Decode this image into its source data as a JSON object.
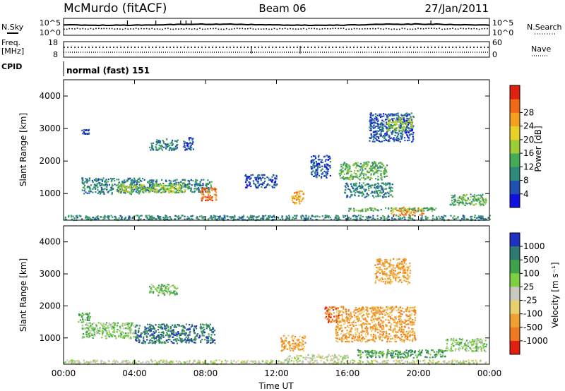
{
  "header": {
    "station": "McMurdo (fitACF)",
    "beam": "Beam 06",
    "date": "27/Jan/2011"
  },
  "summary": {
    "left_labels": {
      "nsky": "N.Sky",
      "freq_line1": "Freq.",
      "freq_line2": "[MHz]",
      "cpid": "CPID"
    },
    "right_labels": {
      "nsearch": "N.Search",
      "nave": "Nave"
    },
    "noise_ticks_left": {
      "top": "10^5",
      "bottom": "10^0"
    },
    "noise_ticks_right": {
      "top": "10^5",
      "bottom": "10^0"
    },
    "freq_ticks_left": {
      "top": "18",
      "bottom": "8"
    },
    "nave_ticks_right": {
      "top": "60",
      "bottom": "0"
    },
    "cpid_text": "normal (fast) 151"
  },
  "axes": {
    "ylabel": "Slant Range [km]",
    "xlabel": "Time UT",
    "yticks": [
      "1000",
      "2000",
      "3000",
      "4000"
    ],
    "ytick_values": [
      1000,
      2000,
      3000,
      4000
    ],
    "ylim": [
      180,
      4500
    ],
    "xticks": [
      "00:00",
      "04:00",
      "08:00",
      "12:00",
      "16:00",
      "20:00",
      "00:00"
    ],
    "xtick_hours": [
      0,
      4,
      8,
      12,
      16,
      20,
      24
    ],
    "xlim_hours": [
      0,
      24
    ]
  },
  "colorbars": {
    "power": {
      "label": "Power [dB]",
      "ticks": [
        "4",
        "8",
        "12",
        "16",
        "20",
        "24",
        "28"
      ],
      "colors": [
        "#1010e0",
        "#2050b0",
        "#2e8a78",
        "#45aa55",
        "#9ccb35",
        "#e8d026",
        "#f4a020",
        "#f06a16",
        "#e02010"
      ]
    },
    "velocity": {
      "label": "Velocity [m s⁻¹]",
      "ticks": [
        "1000",
        "500",
        "100",
        "25",
        "-25",
        "-100",
        "-500",
        "-1000"
      ],
      "colors": [
        "#2030c0",
        "#2f7a70",
        "#3fa24a",
        "#7fcf45",
        "#c8c8c0",
        "#e8d070",
        "#f0a030",
        "#f07a20",
        "#e02010"
      ]
    }
  },
  "chart_data": [
    {
      "type": "heatmap",
      "panel": "power",
      "x_unit": "hours UT",
      "y_unit": "km",
      "clabel": "Power [dB]",
      "regions": [
        {
          "x": [
            1.0,
            4.5
          ],
          "y": [
            1000,
            1500
          ],
          "level": 2
        },
        {
          "x": [
            4.5,
            8.3
          ],
          "y": [
            1050,
            1450
          ],
          "level": 2
        },
        {
          "x": [
            7.7,
            8.6
          ],
          "y": [
            800,
            1200
          ],
          "level": 7
        },
        {
          "x": [
            3.0,
            7.0
          ],
          "y": [
            1050,
            1300
          ],
          "level": 4
        },
        {
          "x": [
            4.8,
            6.4
          ],
          "y": [
            2350,
            2700
          ],
          "level": 2
        },
        {
          "x": [
            6.7,
            7.3
          ],
          "y": [
            2350,
            2750
          ],
          "level": 1
        },
        {
          "x": [
            1.0,
            1.4
          ],
          "y": [
            2850,
            3000
          ],
          "level": 1
        },
        {
          "x": [
            12.8,
            13.5
          ],
          "y": [
            700,
            1100
          ],
          "level": 6
        },
        {
          "x": [
            15.5,
            18.2
          ],
          "y": [
            1450,
            2000
          ],
          "level": 3
        },
        {
          "x": [
            15.8,
            18.5
          ],
          "y": [
            900,
            1350
          ],
          "level": 2
        },
        {
          "x": [
            17.2,
            19.7
          ],
          "y": [
            2600,
            3500
          ],
          "level": 1
        },
        {
          "x": [
            18.2,
            19.6
          ],
          "y": [
            2950,
            3350
          ],
          "level": 4
        },
        {
          "x": [
            18.4,
            20.3
          ],
          "y": [
            350,
            600
          ],
          "level": 6
        },
        {
          "x": [
            16.0,
            21.0
          ],
          "y": [
            480,
            580
          ],
          "level": 3
        },
        {
          "x": [
            21.7,
            23.8
          ],
          "y": [
            650,
            1000
          ],
          "level": 3
        },
        {
          "x": [
            0.0,
            24.0
          ],
          "y": [
            200,
            350
          ],
          "level": 2
        },
        {
          "x": [
            10.2,
            12.0
          ],
          "y": [
            1200,
            1600
          ],
          "level": 1
        },
        {
          "x": [
            13.9,
            15.0
          ],
          "y": [
            1500,
            2200
          ],
          "level": 1
        }
      ]
    },
    {
      "type": "heatmap",
      "panel": "velocity",
      "x_unit": "hours UT",
      "y_unit": "km",
      "clabel": "Velocity [m s⁻¹]",
      "regions": [
        {
          "x": [
            1.0,
            4.0
          ],
          "y": [
            1000,
            1500
          ],
          "class": 3
        },
        {
          "x": [
            4.0,
            8.5
          ],
          "y": [
            850,
            1450
          ],
          "class": 1
        },
        {
          "x": [
            4.8,
            6.4
          ],
          "y": [
            2350,
            2700
          ],
          "class": 3
        },
        {
          "x": [
            0.8,
            1.5
          ],
          "y": [
            1500,
            1800
          ],
          "class": 2
        },
        {
          "x": [
            12.2,
            13.6
          ],
          "y": [
            600,
            1100
          ],
          "class": 6
        },
        {
          "x": [
            15.3,
            19.8
          ],
          "y": [
            900,
            2000
          ],
          "class": 6
        },
        {
          "x": [
            14.7,
            15.5
          ],
          "y": [
            1500,
            2000
          ],
          "class": 7
        },
        {
          "x": [
            17.5,
            19.5
          ],
          "y": [
            2700,
            3500
          ],
          "class": 6
        },
        {
          "x": [
            21.5,
            23.8
          ],
          "y": [
            600,
            1000
          ],
          "class": 3
        },
        {
          "x": [
            16.5,
            21.5
          ],
          "y": [
            400,
            650
          ],
          "class": 2
        },
        {
          "x": [
            0.0,
            24.0
          ],
          "y": [
            200,
            330
          ],
          "class": 4
        },
        {
          "x": [
            12.5,
            16.0
          ],
          "y": [
            350,
            500
          ],
          "class": 4
        }
      ]
    }
  ]
}
